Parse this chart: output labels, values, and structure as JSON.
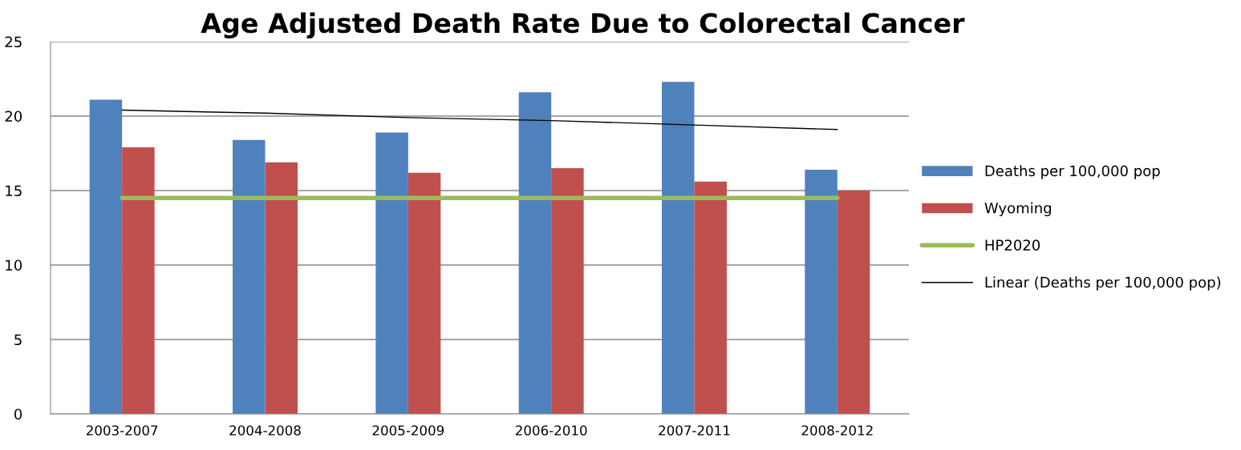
{
  "chart_data": {
    "type": "bar",
    "title": "Age Adjusted Death Rate Due to Colorectal Cancer",
    "categories": [
      "2003-2007",
      "2004-2008",
      "2005-2009",
      "2006-2010",
      "2007-2011",
      "2008-2012"
    ],
    "series": [
      {
        "name": "Deaths per 100,000 pop",
        "color": "#4f81bd",
        "values": [
          21.1,
          18.4,
          18.9,
          21.6,
          22.3,
          16.4
        ]
      },
      {
        "name": "Wyoming",
        "color": "#c0504d",
        "values": [
          17.9,
          16.9,
          16.2,
          16.5,
          15.6,
          15.0
        ]
      },
      {
        "name": "HP2020",
        "type": "line",
        "color": "#9bbb59",
        "values": [
          14.5,
          14.5,
          14.5,
          14.5,
          14.5,
          14.5
        ]
      },
      {
        "name": "Linear (Deaths per 100,000 pop)",
        "type": "line",
        "color": "#000000",
        "values": [
          20.4,
          20.2,
          19.9,
          19.7,
          19.4,
          19.1
        ]
      }
    ],
    "ylim": [
      0,
      25
    ],
    "yticks": [
      0,
      5,
      10,
      15,
      20,
      25
    ],
    "grid": "y",
    "legend": "right"
  }
}
